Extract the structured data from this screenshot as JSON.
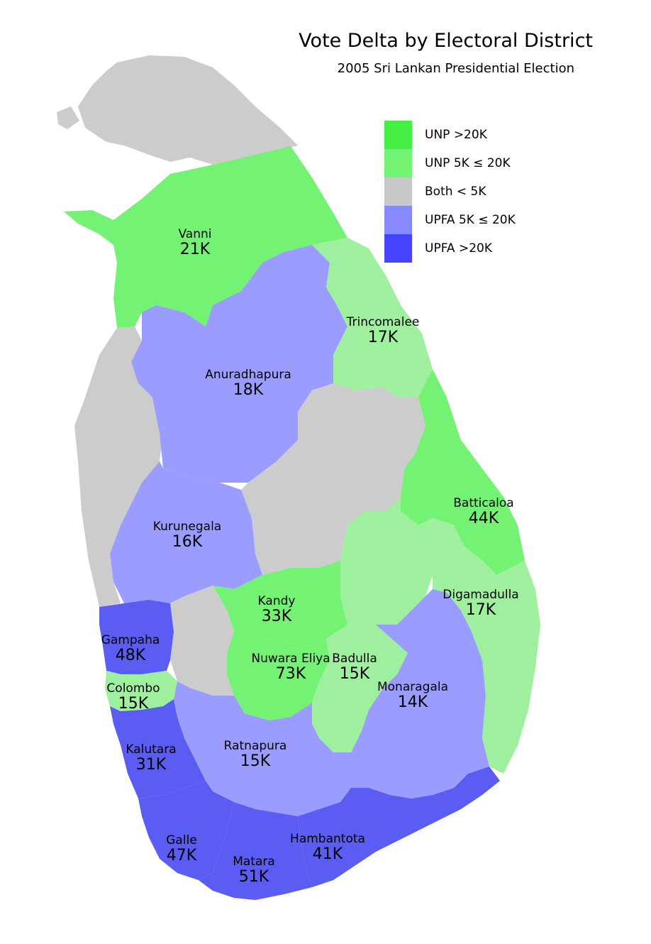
{
  "title": "Vote Delta by Electoral District",
  "subtitle": "2005 Sri Lankan Presidential Election",
  "legend": [
    {
      "label": "UNP >20K",
      "color": "#44ee44"
    },
    {
      "label": "UNP 5K ≤ 20K",
      "color": "#74f274"
    },
    {
      "label": "Both < 5K",
      "color": "#c8c8c8"
    },
    {
      "label": "UPFA 5K ≤ 20K",
      "color": "#8888ff"
    },
    {
      "label": "UPFA >20K",
      "color": "#4444ff"
    }
  ],
  "colors": {
    "unp_high": "#74f274",
    "unp_mid": "#9ef09e",
    "both_low": "#cccccc",
    "upfa_mid": "#9a9cff",
    "upfa_high": "#5a5cf2"
  },
  "districts": [
    {
      "name": "Vanni",
      "value": "21K",
      "category": "unp_high"
    },
    {
      "name": "Trincomalee",
      "value": "17K",
      "category": "unp_mid"
    },
    {
      "name": "Anuradhapura",
      "value": "18K",
      "category": "upfa_mid"
    },
    {
      "name": "Batticaloa",
      "value": "44K",
      "category": "unp_high"
    },
    {
      "name": "Kurunegala",
      "value": "16K",
      "category": "upfa_mid"
    },
    {
      "name": "Kandy",
      "value": "33K",
      "category": "unp_high"
    },
    {
      "name": "Digamadulla",
      "value": "17K",
      "category": "unp_mid"
    },
    {
      "name": "Gampaha",
      "value": "48K",
      "category": "upfa_high"
    },
    {
      "name": "Nuwara Eliya",
      "value": "73K",
      "category": "unp_high"
    },
    {
      "name": "Badulla",
      "value": "15K",
      "category": "unp_mid"
    },
    {
      "name": "Colombo",
      "value": "15K",
      "category": "unp_mid"
    },
    {
      "name": "Monaragala",
      "value": "14K",
      "category": "upfa_mid"
    },
    {
      "name": "Kalutara",
      "value": "31K",
      "category": "upfa_high"
    },
    {
      "name": "Ratnapura",
      "value": "15K",
      "category": "upfa_mid"
    },
    {
      "name": "Hambantota",
      "value": "41K",
      "category": "upfa_high"
    },
    {
      "name": "Galle",
      "value": "47K",
      "category": "upfa_high"
    },
    {
      "name": "Matara",
      "value": "51K",
      "category": "upfa_high"
    }
  ]
}
